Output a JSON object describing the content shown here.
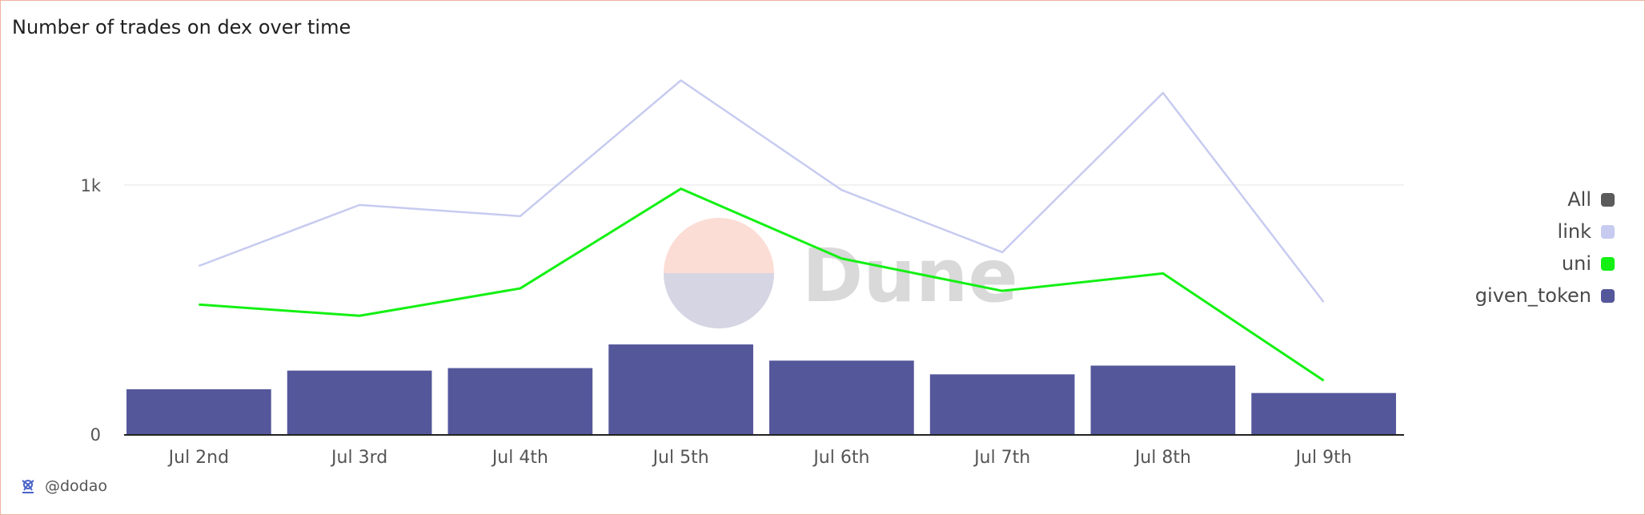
{
  "title": "Number of trades on dex over time",
  "credit": "@dodao",
  "watermark": "Dune",
  "legend": [
    {
      "label": "All",
      "color": "#5b5b5b"
    },
    {
      "label": "link",
      "color": "#c7cbf0"
    },
    {
      "label": "uni",
      "color": "#13f013"
    },
    {
      "label": "given_token",
      "color": "#55579b"
    }
  ],
  "chart_data": {
    "type": "bar",
    "categories": [
      "Jul 2nd",
      "Jul 3rd",
      "Jul 4th",
      "Jul 5th",
      "Jul 6th",
      "Jul 7th",
      "Jul 8th",
      "Jul 9th"
    ],
    "series": [
      {
        "name": "given_token",
        "type": "bar",
        "color": "#55579b",
        "values": [
          180,
          255,
          265,
          360,
          295,
          240,
          275,
          165
        ]
      },
      {
        "name": "uni",
        "type": "line",
        "color": "#13f013",
        "values": [
          520,
          475,
          585,
          985,
          705,
          575,
          645,
          215
        ]
      },
      {
        "name": "link",
        "type": "line",
        "color": "#c7cbf0",
        "values": [
          675,
          920,
          875,
          1420,
          980,
          730,
          1370,
          530
        ]
      }
    ],
    "yticks": [
      {
        "value": 0,
        "label": "0"
      },
      {
        "value": 1000,
        "label": "1k"
      }
    ],
    "ylim": [
      0,
      1500
    ],
    "xlabel": "",
    "ylabel": "",
    "grid": true,
    "legend_position": "right"
  }
}
